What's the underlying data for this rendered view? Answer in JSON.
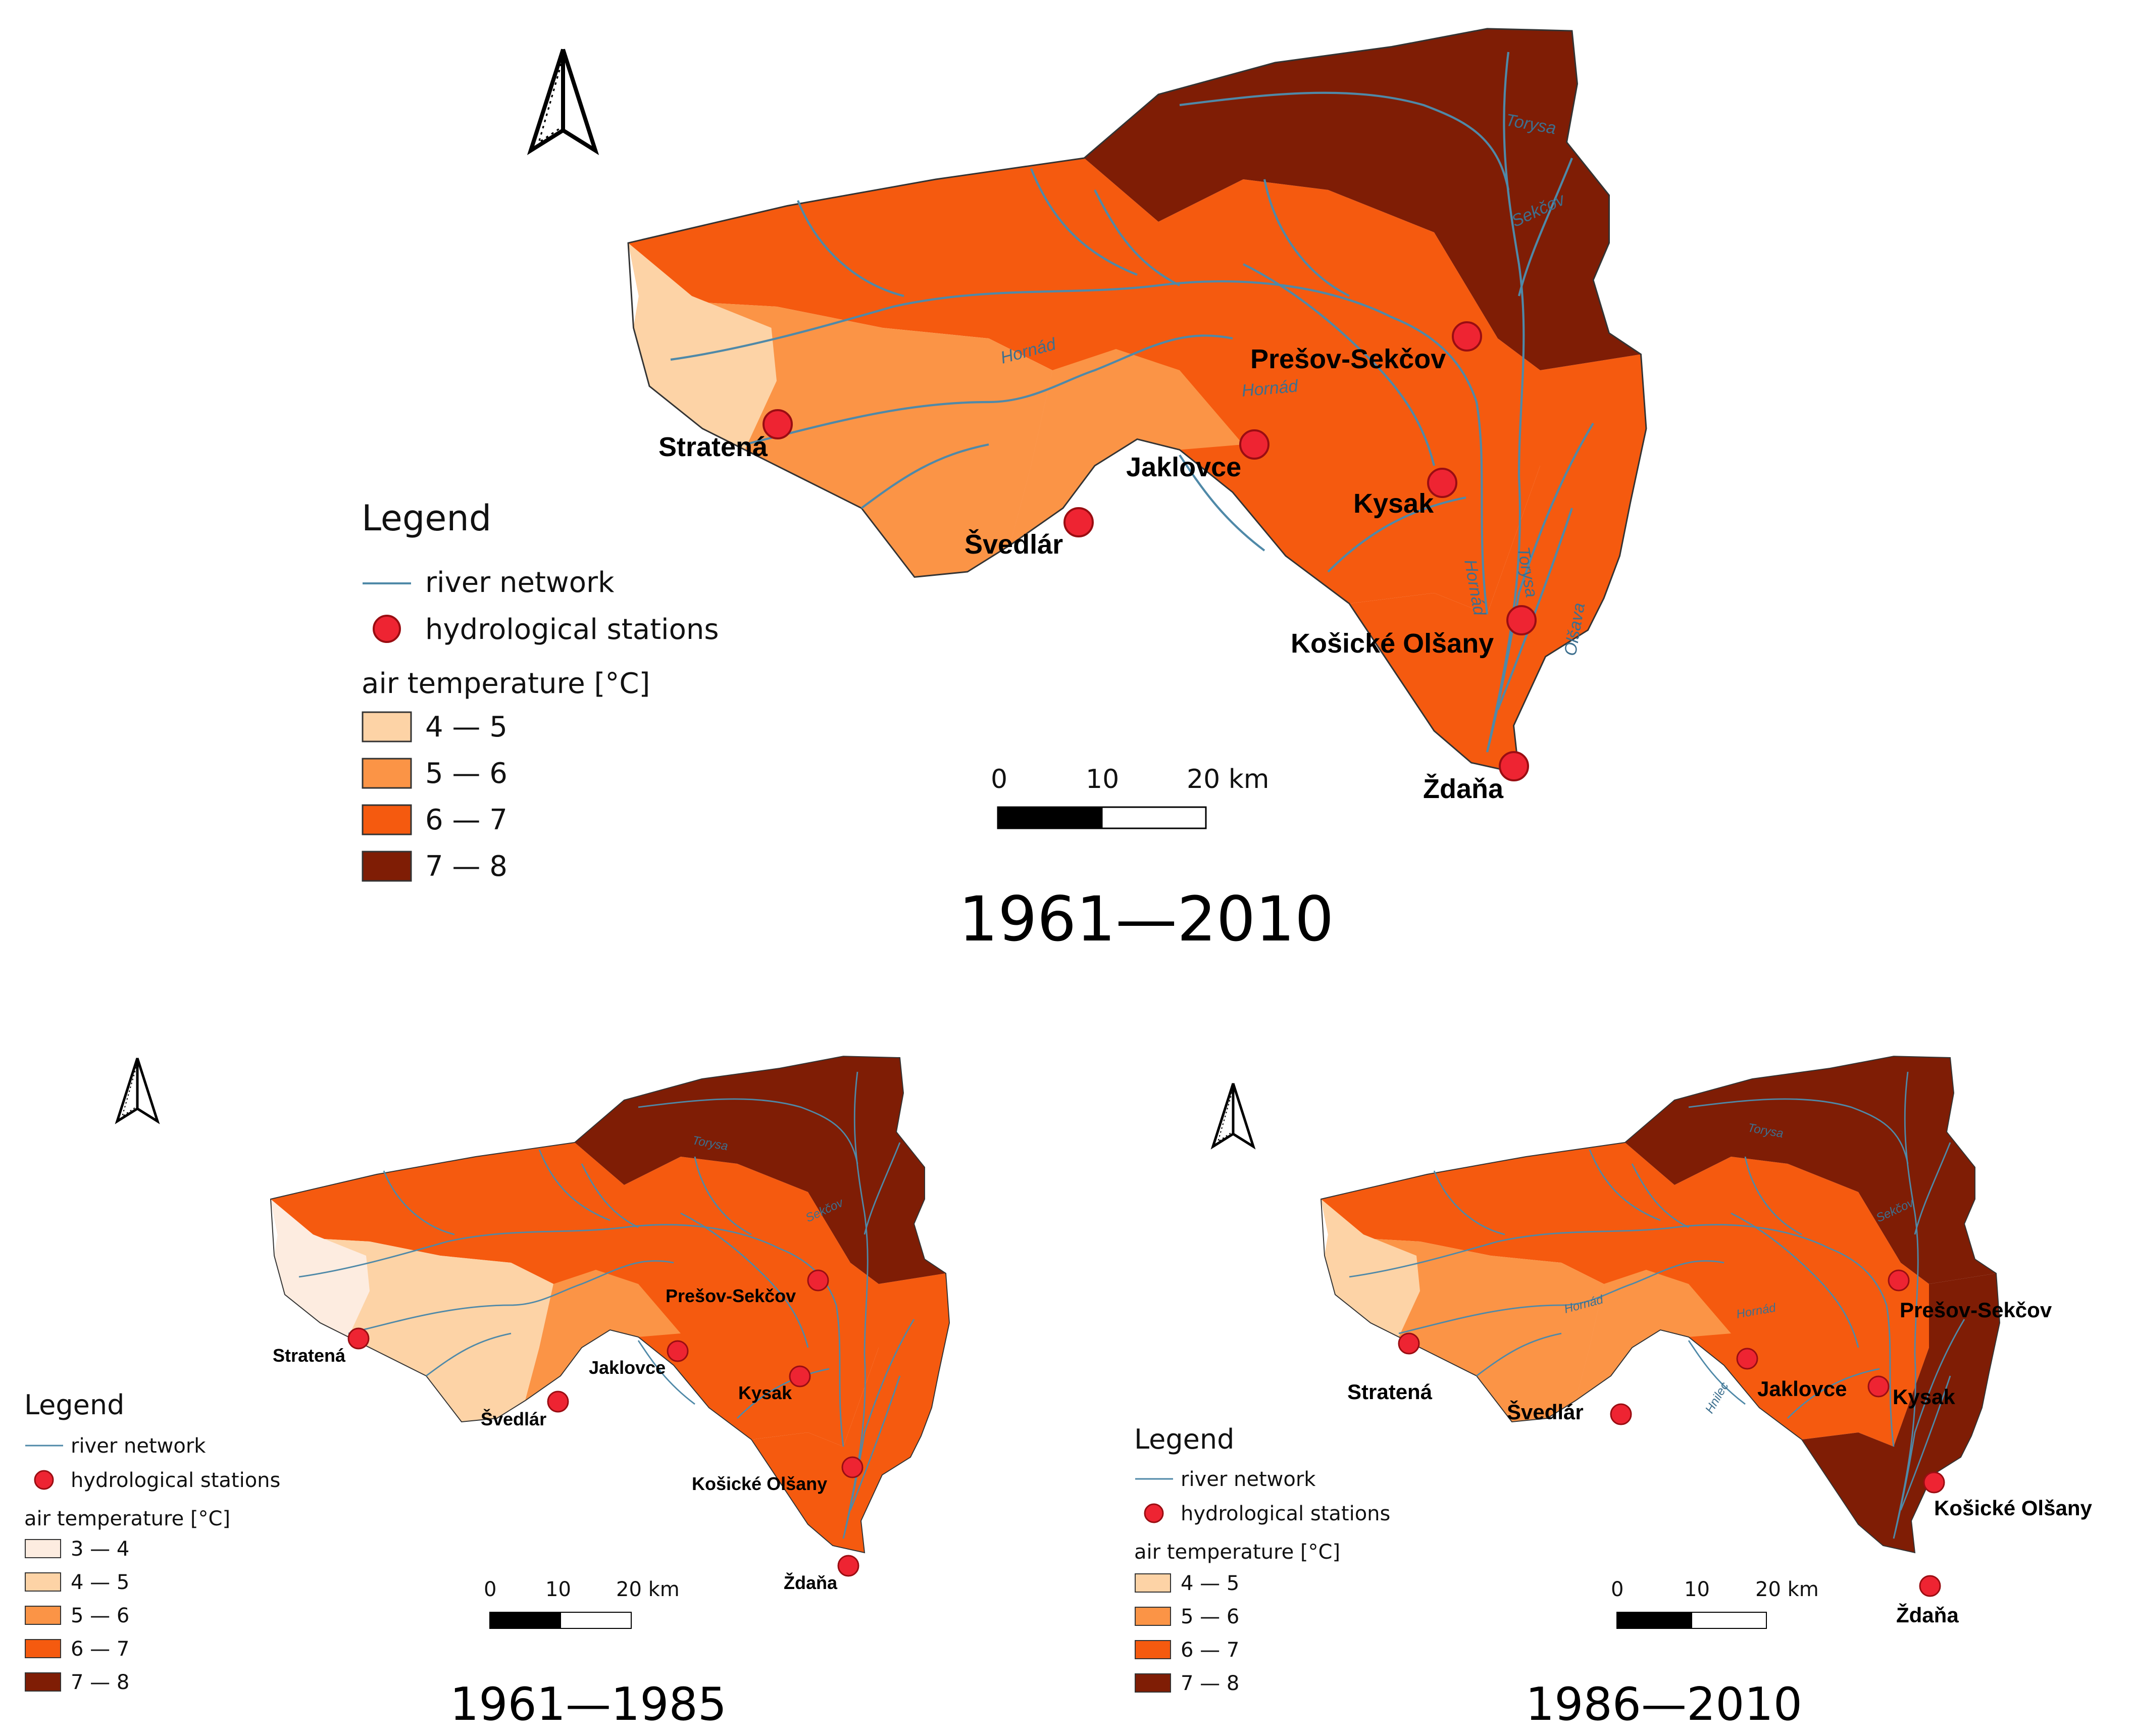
{
  "colors": {
    "t3_4": "#fdece0",
    "t4_5": "#fdd3a6",
    "t5_6": "#fb9446",
    "t6_7": "#f55a0f",
    "t7_8": "#7f1d05",
    "river": "#4f89a8",
    "station": "#ee2432"
  },
  "legend": {
    "title": "Legend",
    "river_label": "river network",
    "station_label": "hydrological stations",
    "temp_title": "air temperature [°C]"
  },
  "scalebar": {
    "t0": "0",
    "t10": "10",
    "t20": "20 km"
  },
  "rivers": {
    "torysa": "Torysa",
    "sekcov": "Sekčov",
    "hornad": "Hornád",
    "olsava": "Olšava",
    "hnilec": "Hnilec"
  },
  "maps": [
    {
      "period": "1961—2010",
      "classes": [
        "4 — 5",
        "5 — 6",
        "6 — 7",
        "7 — 8"
      ],
      "stations": [
        "Prešov-Sekčov",
        "Stratená",
        "Jaklovce",
        "Kysak",
        "Švedlár",
        "Košické Olšany",
        "Ždaňa"
      ]
    },
    {
      "period": "1961—1985",
      "classes": [
        "3 — 4",
        "4 — 5",
        "5 — 6",
        "6 — 7",
        "7 — 8"
      ],
      "stations": [
        "Prešov-Sekčov",
        "Stratená",
        "Jaklovce",
        "Kysak",
        "Švedlár",
        "Košické Olšany",
        "Ždaňa"
      ]
    },
    {
      "period": "1986—2010",
      "classes": [
        "4 — 5",
        "5 — 6",
        "6 — 7",
        "7 — 8"
      ],
      "stations": [
        "Prešov-Sekčov",
        "Stratená",
        "Švedlár",
        "Jaklovce",
        "Kysak",
        "Košické Olšany",
        "Ždaňa"
      ]
    }
  ]
}
